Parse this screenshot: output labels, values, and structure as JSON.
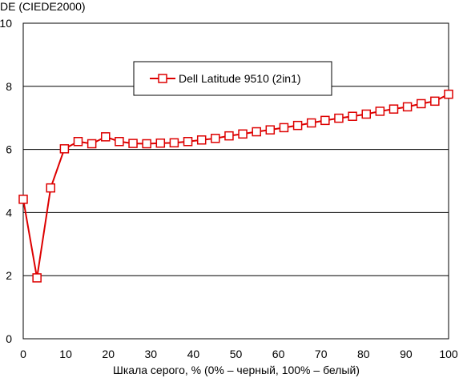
{
  "chart_data": {
    "type": "line",
    "ylabel": "DE (CIEDE2000)",
    "xlabel": "Шкала серого, % (0% – черный, 100% – белый)",
    "xlim": [
      0,
      100
    ],
    "ylim": [
      0,
      10
    ],
    "x_ticks": [
      0,
      10,
      20,
      30,
      40,
      50,
      60,
      70,
      80,
      90,
      100
    ],
    "y_ticks": [
      0,
      2,
      4,
      6,
      8,
      10
    ],
    "x_tick_labels": [
      "0",
      "10",
      "20",
      "30",
      "40",
      "50",
      "60",
      "70",
      "80",
      "90",
      "100"
    ],
    "y_tick_labels": [
      "0",
      "2",
      "4",
      "6",
      "8",
      "10"
    ],
    "grid": "horizontal",
    "legend_position": "top-center",
    "series": [
      {
        "name": "Dell Latitude 9510 (2in1)",
        "color": "#dd0000",
        "marker": "square",
        "x": [
          0,
          3.23,
          6.45,
          9.68,
          12.9,
          16.13,
          19.35,
          22.58,
          25.81,
          29.03,
          32.26,
          35.48,
          38.71,
          41.94,
          45.16,
          48.39,
          51.61,
          54.84,
          58.06,
          61.29,
          64.52,
          67.74,
          70.97,
          74.19,
          77.42,
          80.65,
          83.87,
          87.1,
          90.32,
          93.55,
          96.77,
          100
        ],
        "y": [
          4.42,
          1.93,
          4.78,
          6.02,
          6.25,
          6.18,
          6.4,
          6.25,
          6.19,
          6.18,
          6.2,
          6.21,
          6.25,
          6.3,
          6.35,
          6.43,
          6.49,
          6.56,
          6.62,
          6.69,
          6.76,
          6.84,
          6.92,
          6.99,
          7.05,
          7.12,
          7.21,
          7.28,
          7.35,
          7.45,
          7.53,
          7.75
        ]
      }
    ]
  }
}
